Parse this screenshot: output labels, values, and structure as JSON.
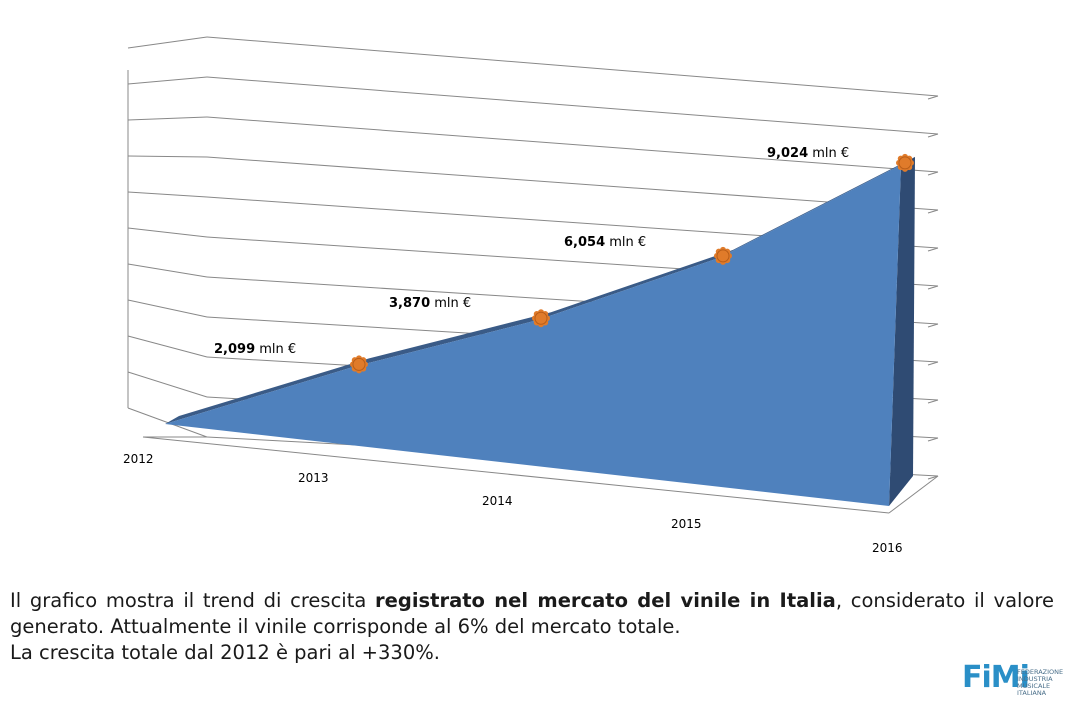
{
  "chart_data": {
    "type": "area",
    "style": "3d",
    "categories": [
      "2012",
      "2013",
      "2014",
      "2015",
      "2016"
    ],
    "values": [
      0,
      2.099,
      3.87,
      6.054,
      9.024
    ],
    "value_labels": [
      "",
      "2,099",
      "3,870",
      "6,054",
      "9,024"
    ],
    "value_unit": "mln €",
    "marker_categories": [
      "2013",
      "2014",
      "2015",
      "2016"
    ],
    "ylim": [
      0,
      10
    ],
    "grid": true,
    "colors": {
      "area_front": "#4f81bd",
      "area_top": "#3a5b87",
      "area_side": "#2f4b73",
      "marker": "#e07b2a",
      "grid": "#888888"
    }
  },
  "caption": {
    "line1_a": "Il grafico mostra il trend di crescita ",
    "line1_bold": "registrato nel mercato del vinile in Italia",
    "line1_b": ", considerato il valore generato. Attualmente il vinile corrisponde al 6% del mercato totale.",
    "line2": "La crescita totale dal 2012 è pari al +330%."
  },
  "logo": {
    "mark": "FiMi",
    "lines": [
      "FEDERAZIONE",
      "INDUSTRIA",
      "MUSICALE",
      "ITALIANA"
    ]
  }
}
